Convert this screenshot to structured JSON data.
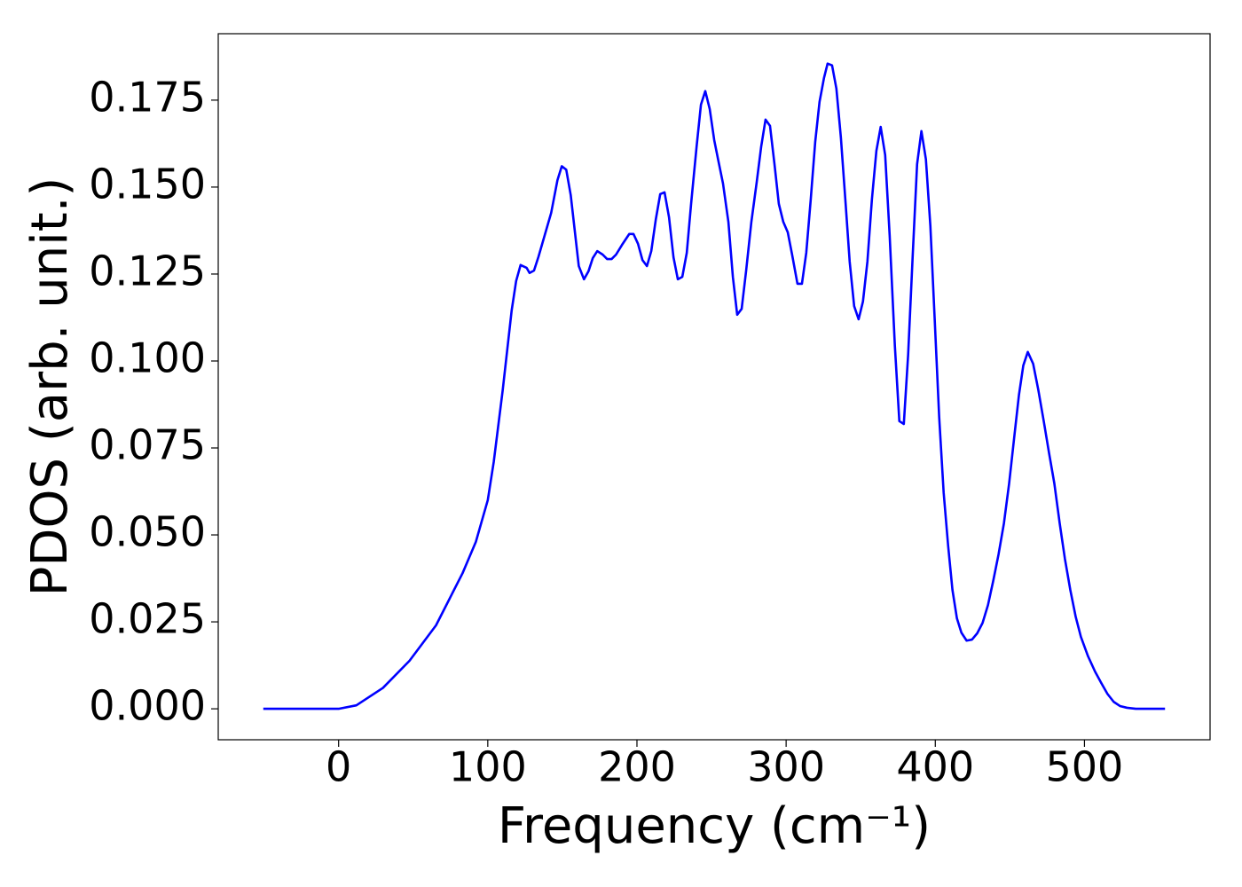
{
  "chart_data": {
    "type": "line",
    "x_label": "Frequency (cm⁻¹)",
    "y_label": "PDOS (arb. unit.)",
    "x": [
      -50.5,
      0,
      11.9,
      29.7,
      47.5,
      65.3,
      83.1,
      92,
      100,
      104,
      110,
      116,
      119,
      122,
      126,
      128,
      131,
      134,
      142.5,
      146.7,
      149.6,
      152.6,
      155.6,
      161,
      164.5,
      167.5,
      170.4,
      173.4,
      177,
      180,
      183,
      186,
      190,
      194.8,
      197.7,
      200.7,
      203.7,
      206.7,
      209.6,
      212.6,
      215.6,
      218.5,
      221.5,
      224.5,
      227.4,
      230.4,
      233.4,
      236.3,
      240,
      242.9,
      245.8,
      248.8,
      251.8,
      254.8,
      257.7,
      261.3,
      264.3,
      267.2,
      270.2,
      273.2,
      276.7,
      280.3,
      283.3,
      286.2,
      289.2,
      292.2,
      295.1,
      298.1,
      301.1,
      304,
      307.6,
      310.6,
      313.5,
      316.5,
      319.5,
      322.4,
      325.4,
      327.8,
      330.8,
      333.7,
      336.7,
      339.7,
      342.6,
      345.6,
      348.6,
      351.5,
      354.5,
      357.5,
      360.5,
      363.4,
      366.4,
      369.4,
      372.9,
      375.9,
      378.9,
      381.8,
      384.8,
      387.8,
      390.7,
      393.7,
      396.7,
      399.6,
      402.6,
      405.6,
      408.6,
      411.5,
      414.5,
      417.5,
      421,
      424.6,
      428.1,
      431.7,
      435.3,
      438.8,
      442.4,
      446,
      449.5,
      453.1,
      456.1,
      459,
      462,
      465.6,
      469.1,
      472.7,
      476.2,
      479.8,
      483.4,
      486.9,
      490.5,
      494.1,
      497.6,
      502.4,
      507.1,
      511.3,
      515.4,
      519.6,
      523.8,
      528.5,
      534.4,
      554
    ],
    "series": [
      {
        "color": "#0000ff",
        "values": [
          0,
          0,
          0.001,
          0.006,
          0.0138,
          0.024,
          0.039,
          0.048,
          0.06,
          0.071,
          0.0916,
          0.1145,
          0.123,
          0.1276,
          0.1268,
          0.1253,
          0.126,
          0.13,
          0.1426,
          0.152,
          0.156,
          0.155,
          0.1477,
          0.1273,
          0.1235,
          0.1258,
          0.1296,
          0.1316,
          0.1306,
          0.1293,
          0.1293,
          0.1306,
          0.1334,
          0.1365,
          0.1365,
          0.1337,
          0.129,
          0.1273,
          0.1316,
          0.1406,
          0.148,
          0.1485,
          0.1413,
          0.1298,
          0.1235,
          0.1242,
          0.1311,
          0.1452,
          0.1617,
          0.1737,
          0.1776,
          0.1724,
          0.1635,
          0.1571,
          0.151,
          0.14,
          0.1242,
          0.1133,
          0.115,
          0.126,
          0.14,
          0.1515,
          0.1617,
          0.1694,
          0.1676,
          0.1566,
          0.1452,
          0.14,
          0.137,
          0.1306,
          0.1222,
          0.1222,
          0.1311,
          0.1464,
          0.163,
          0.1745,
          0.1814,
          0.1855,
          0.185,
          0.1783,
          0.1643,
          0.1464,
          0.1286,
          0.1158,
          0.112,
          0.1171,
          0.1286,
          0.1464,
          0.1604,
          0.1673,
          0.1592,
          0.1362,
          0.1043,
          0.0827,
          0.0819,
          0.1018,
          0.1298,
          0.1566,
          0.1661,
          0.158,
          0.1388,
          0.112,
          0.0839,
          0.0622,
          0.0469,
          0.0342,
          0.026,
          0.0219,
          0.0196,
          0.0199,
          0.0217,
          0.0247,
          0.0298,
          0.0367,
          0.0444,
          0.0533,
          0.0648,
          0.0788,
          0.0903,
          0.0987,
          0.1026,
          0.0992,
          0.0916,
          0.0827,
          0.0737,
          0.0648,
          0.0533,
          0.0431,
          0.0342,
          0.0265,
          0.0207,
          0.0151,
          0.0107,
          0.0074,
          0.0043,
          0.002,
          0.0008,
          0.0003,
          0,
          0
        ]
      }
    ],
    "xlim": [
      -80.7,
      584.2
    ],
    "ylim": [
      -0.0089,
      0.1941
    ],
    "xticks": [
      0,
      100,
      200,
      300,
      400,
      500
    ],
    "yticks": [
      {
        "value": 0,
        "label": "0.000"
      },
      {
        "value": 0.025,
        "label": "0.025"
      },
      {
        "value": 0.05,
        "label": "0.050"
      },
      {
        "value": 0.075,
        "label": "0.075"
      },
      {
        "value": 0.1,
        "label": "0.100"
      },
      {
        "value": 0.125,
        "label": "0.125"
      },
      {
        "value": 0.15,
        "label": "0.150"
      },
      {
        "value": 0.175,
        "label": "0.175"
      }
    ],
    "grid": false
  }
}
